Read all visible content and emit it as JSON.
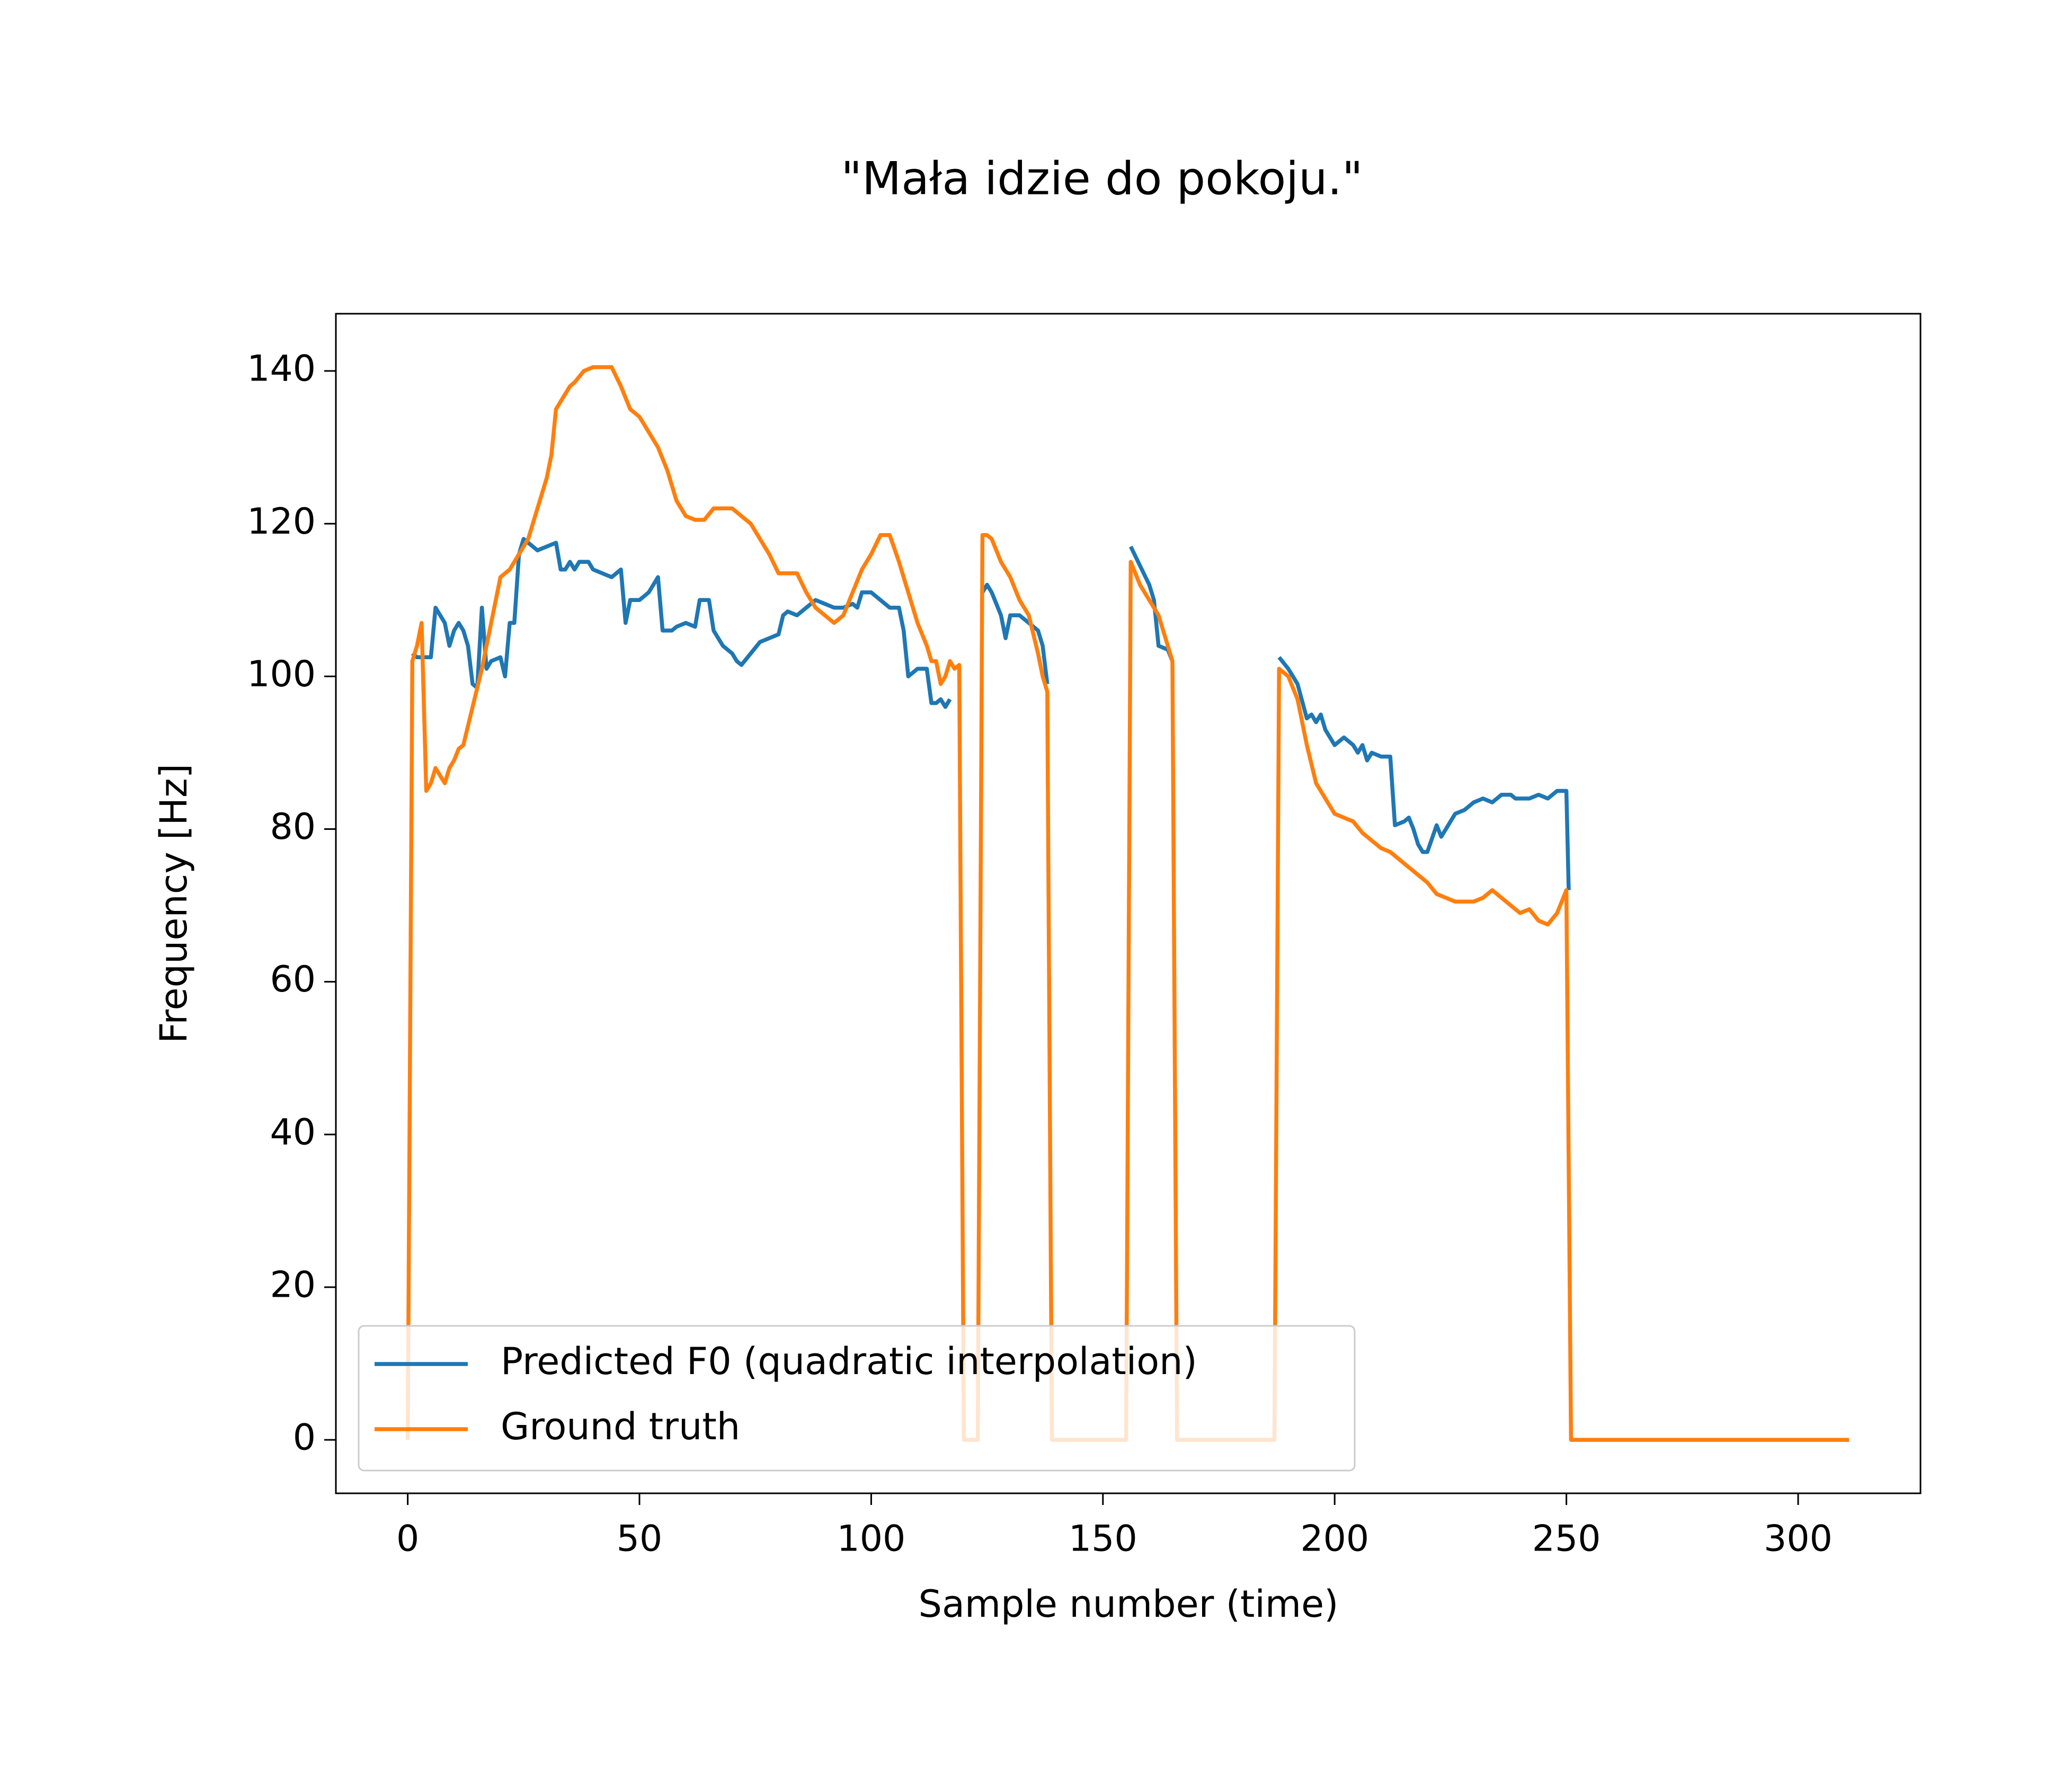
{
  "chart_data": {
    "type": "line",
    "title": "\"Mała idzie do pokoju.\"",
    "x_label": "Sample number (time)",
    "y_label": "Frequency [Hz]",
    "xlim": [
      -15.5,
      326.4
    ],
    "ylim": [
      -7,
      147.5
    ],
    "xticks": [
      0,
      50,
      100,
      150,
      200,
      250,
      300
    ],
    "yticks": [
      0,
      20,
      40,
      60,
      80,
      100,
      120,
      140
    ],
    "legend": "lower left",
    "series": [
      {
        "name": "Predicted F0 (quadratic interpolation)",
        "color": "#1f77b4",
        "x": [
          1,
          2,
          4,
          5,
          6,
          8,
          9,
          10,
          11,
          12,
          13,
          14,
          15,
          16,
          17,
          18,
          20,
          21,
          22,
          23,
          24,
          25,
          27,
          28,
          30,
          32,
          33,
          34,
          35,
          36,
          37,
          39,
          40,
          44,
          46,
          47,
          48,
          50,
          52,
          54,
          55,
          57,
          58,
          60,
          62,
          63,
          65,
          66,
          68,
          70,
          71,
          72,
          74,
          76,
          78,
          80,
          81,
          82,
          84,
          86,
          88,
          90,
          92,
          94,
          96,
          97,
          98,
          100,
          102,
          104,
          106,
          107,
          108,
          110,
          112,
          113,
          114,
          115,
          116,
          117,
          118,
          124,
          125,
          126,
          128,
          129,
          130,
          132,
          134,
          136,
          137,
          138,
          139,
          155,
          156,
          158,
          160,
          161,
          162,
          164,
          165,
          166,
          187,
          188,
          190,
          192,
          194,
          195,
          196,
          197,
          198,
          200,
          202,
          204,
          205,
          206,
          207,
          208,
          210,
          212,
          213,
          215,
          216,
          217,
          218,
          219,
          220,
          222,
          223,
          224,
          226,
          228,
          230,
          232,
          234,
          236,
          238,
          239,
          242,
          244,
          246,
          248,
          250,
          250.5
        ],
        "values": [
          103,
          102.5,
          102.5,
          102.5,
          109,
          107,
          104,
          106,
          107,
          106,
          104,
          99,
          98.5,
          109,
          101,
          102,
          102.5,
          100,
          107,
          107,
          116,
          118,
          117,
          116.5,
          117,
          117.5,
          114,
          114,
          115,
          114,
          115,
          115,
          114,
          113,
          114,
          107,
          110,
          110,
          111,
          113,
          106,
          106,
          106.5,
          107,
          106.5,
          110,
          110,
          106,
          104,
          103,
          102,
          101.5,
          103,
          104.5,
          105,
          105.5,
          108,
          108.5,
          108,
          109,
          110,
          109.5,
          109,
          109,
          109.5,
          109,
          111,
          111,
          110,
          109,
          109,
          106,
          100,
          101,
          101,
          96.5,
          96.5,
          97,
          96,
          97,
          null,
          111,
          112,
          111,
          108,
          105,
          108,
          108,
          107,
          106,
          104,
          99,
          null,
          null,
          117,
          114.5,
          112,
          110,
          104,
          103.5,
          102,
          null,
          null,
          102.5,
          101,
          99,
          94.5,
          95,
          94,
          95,
          93,
          91,
          92,
          91,
          90,
          91,
          89,
          90,
          89.5,
          89.5,
          80.5,
          81,
          81.5,
          80,
          78,
          77,
          77,
          80.5,
          79,
          80,
          82,
          82.5,
          83.5,
          84,
          83.5,
          84.5,
          84.5,
          84,
          84,
          84.5,
          84,
          85,
          85,
          72
        ]
      },
      {
        "name": "Ground truth",
        "color": "#ff7f0e",
        "x": [
          0,
          1,
          2,
          3,
          4,
          5,
          6,
          7,
          8,
          9,
          10,
          11,
          12,
          14,
          16,
          18,
          20,
          22,
          24,
          26,
          28,
          30,
          31,
          32,
          34,
          35,
          36,
          38,
          40,
          44,
          46,
          48,
          50,
          52,
          54,
          56,
          58,
          60,
          62,
          64,
          66,
          70,
          72,
          74,
          76,
          78,
          80,
          84,
          86,
          88,
          90,
          92,
          94,
          96,
          98,
          100,
          102,
          104,
          106,
          108,
          110,
          112,
          113,
          114,
          115,
          116,
          117,
          118,
          119,
          120,
          123,
          124,
          125,
          126,
          128,
          130,
          132,
          134,
          136,
          137,
          138,
          139,
          155,
          156,
          158,
          160,
          162,
          164,
          165,
          166,
          187,
          188,
          190,
          192,
          194,
          196,
          198,
          200,
          202,
          204,
          206,
          208,
          210,
          212,
          214,
          216,
          218,
          220,
          222,
          224,
          226,
          228,
          230,
          232,
          234,
          236,
          238,
          240,
          242,
          244,
          246,
          248,
          250,
          251,
          311
        ],
        "values": [
          0,
          102,
          104,
          107,
          85,
          86,
          88,
          87,
          86,
          88,
          89,
          90.5,
          91,
          96,
          101,
          107,
          113,
          114,
          116,
          118,
          122,
          126,
          129,
          135,
          137,
          138,
          138.5,
          140,
          140.5,
          140.5,
          138,
          135,
          134,
          132,
          130,
          127,
          123,
          121,
          120.5,
          120.5,
          122,
          122,
          121,
          120,
          118,
          116,
          113.5,
          113.5,
          111,
          109,
          108,
          107,
          108,
          111,
          114,
          116,
          118.5,
          118.5,
          115,
          111,
          107,
          104,
          102,
          102,
          99,
          100,
          102,
          101,
          101.5,
          0,
          0,
          118.5,
          118.5,
          118,
          115,
          113,
          110,
          108,
          103,
          100,
          98,
          0,
          0,
          115,
          112,
          110,
          108,
          104,
          102,
          0,
          0,
          101,
          100,
          97,
          91,
          86,
          84,
          82,
          81.5,
          81,
          79.5,
          78.5,
          77.5,
          77,
          76,
          75,
          74,
          73,
          71.5,
          71,
          70.5,
          70.5,
          70.5,
          71,
          72,
          71,
          70,
          69,
          69.5,
          68,
          67.5,
          69,
          72,
          0,
          0
        ]
      }
    ]
  }
}
